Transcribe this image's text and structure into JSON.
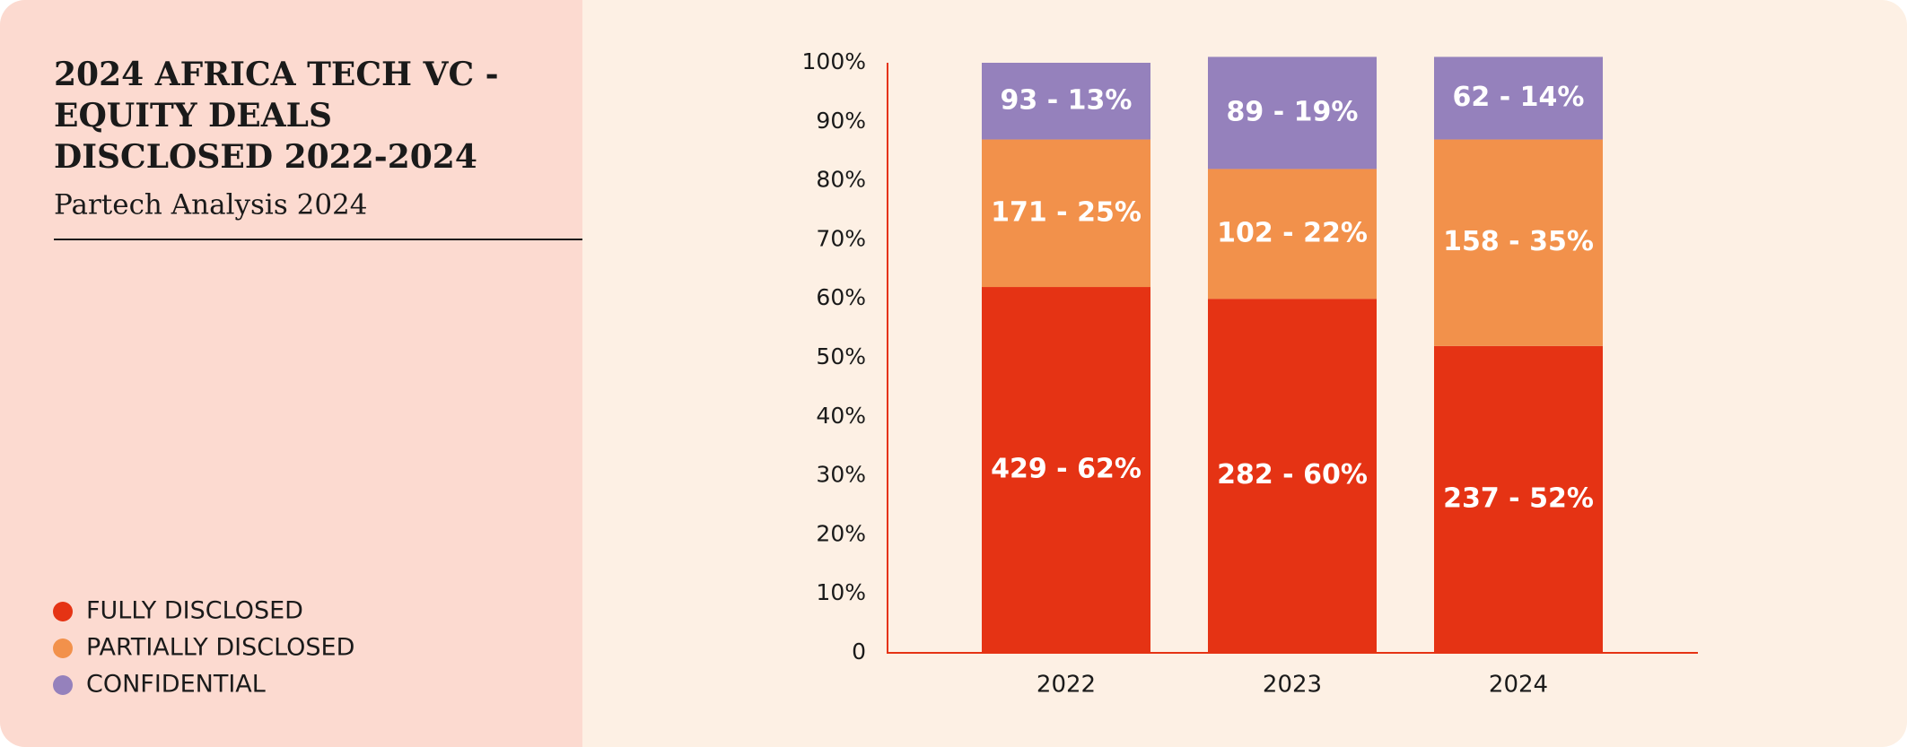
{
  "chart_data": {
    "type": "stacked_bar",
    "title": [
      "2024 AFRICA TECH VC -",
      "EQUITY DEALS",
      "DISCLOSED 2022-2024"
    ],
    "subtitle": "Partech Analysis 2024",
    "categories": [
      "2022",
      "2023",
      "2024"
    ],
    "series": [
      {
        "name": "FULLY DISCLOSED",
        "color": "#e53314",
        "values": [
          62,
          60,
          52
        ],
        "value_labels": [
          "429 - 62%",
          "282 - 60%",
          "237 - 52%"
        ]
      },
      {
        "name": "PARTIALLY DISCLOSED",
        "color": "#f2914b",
        "values": [
          25,
          22,
          35
        ],
        "value_labels": [
          "171 - 25%",
          "102 - 22%",
          "158 - 35%"
        ]
      },
      {
        "name": "CONFIDENTIAL",
        "color": "#9581bc",
        "values": [
          13,
          19,
          14
        ],
        "value_labels": [
          "93 - 13%",
          "89 - 19%",
          "62 - 14%"
        ]
      }
    ],
    "ylim": [
      0,
      100
    ],
    "yticks": [
      0,
      {
        "value": 10,
        "label": "10%"
      },
      {
        "value": 20,
        "label": "20%"
      },
      {
        "value": 30,
        "label": "30%"
      },
      {
        "value": 40,
        "label": "40%"
      },
      {
        "value": 50,
        "label": "50%"
      },
      {
        "value": 60,
        "label": "60%"
      },
      {
        "value": 70,
        "label": "70%"
      },
      {
        "value": 80,
        "label": "80%"
      },
      {
        "value": 90,
        "label": "90%"
      },
      {
        "value": 100,
        "label": "100%"
      }
    ],
    "grid": false,
    "legend": "lower left"
  }
}
